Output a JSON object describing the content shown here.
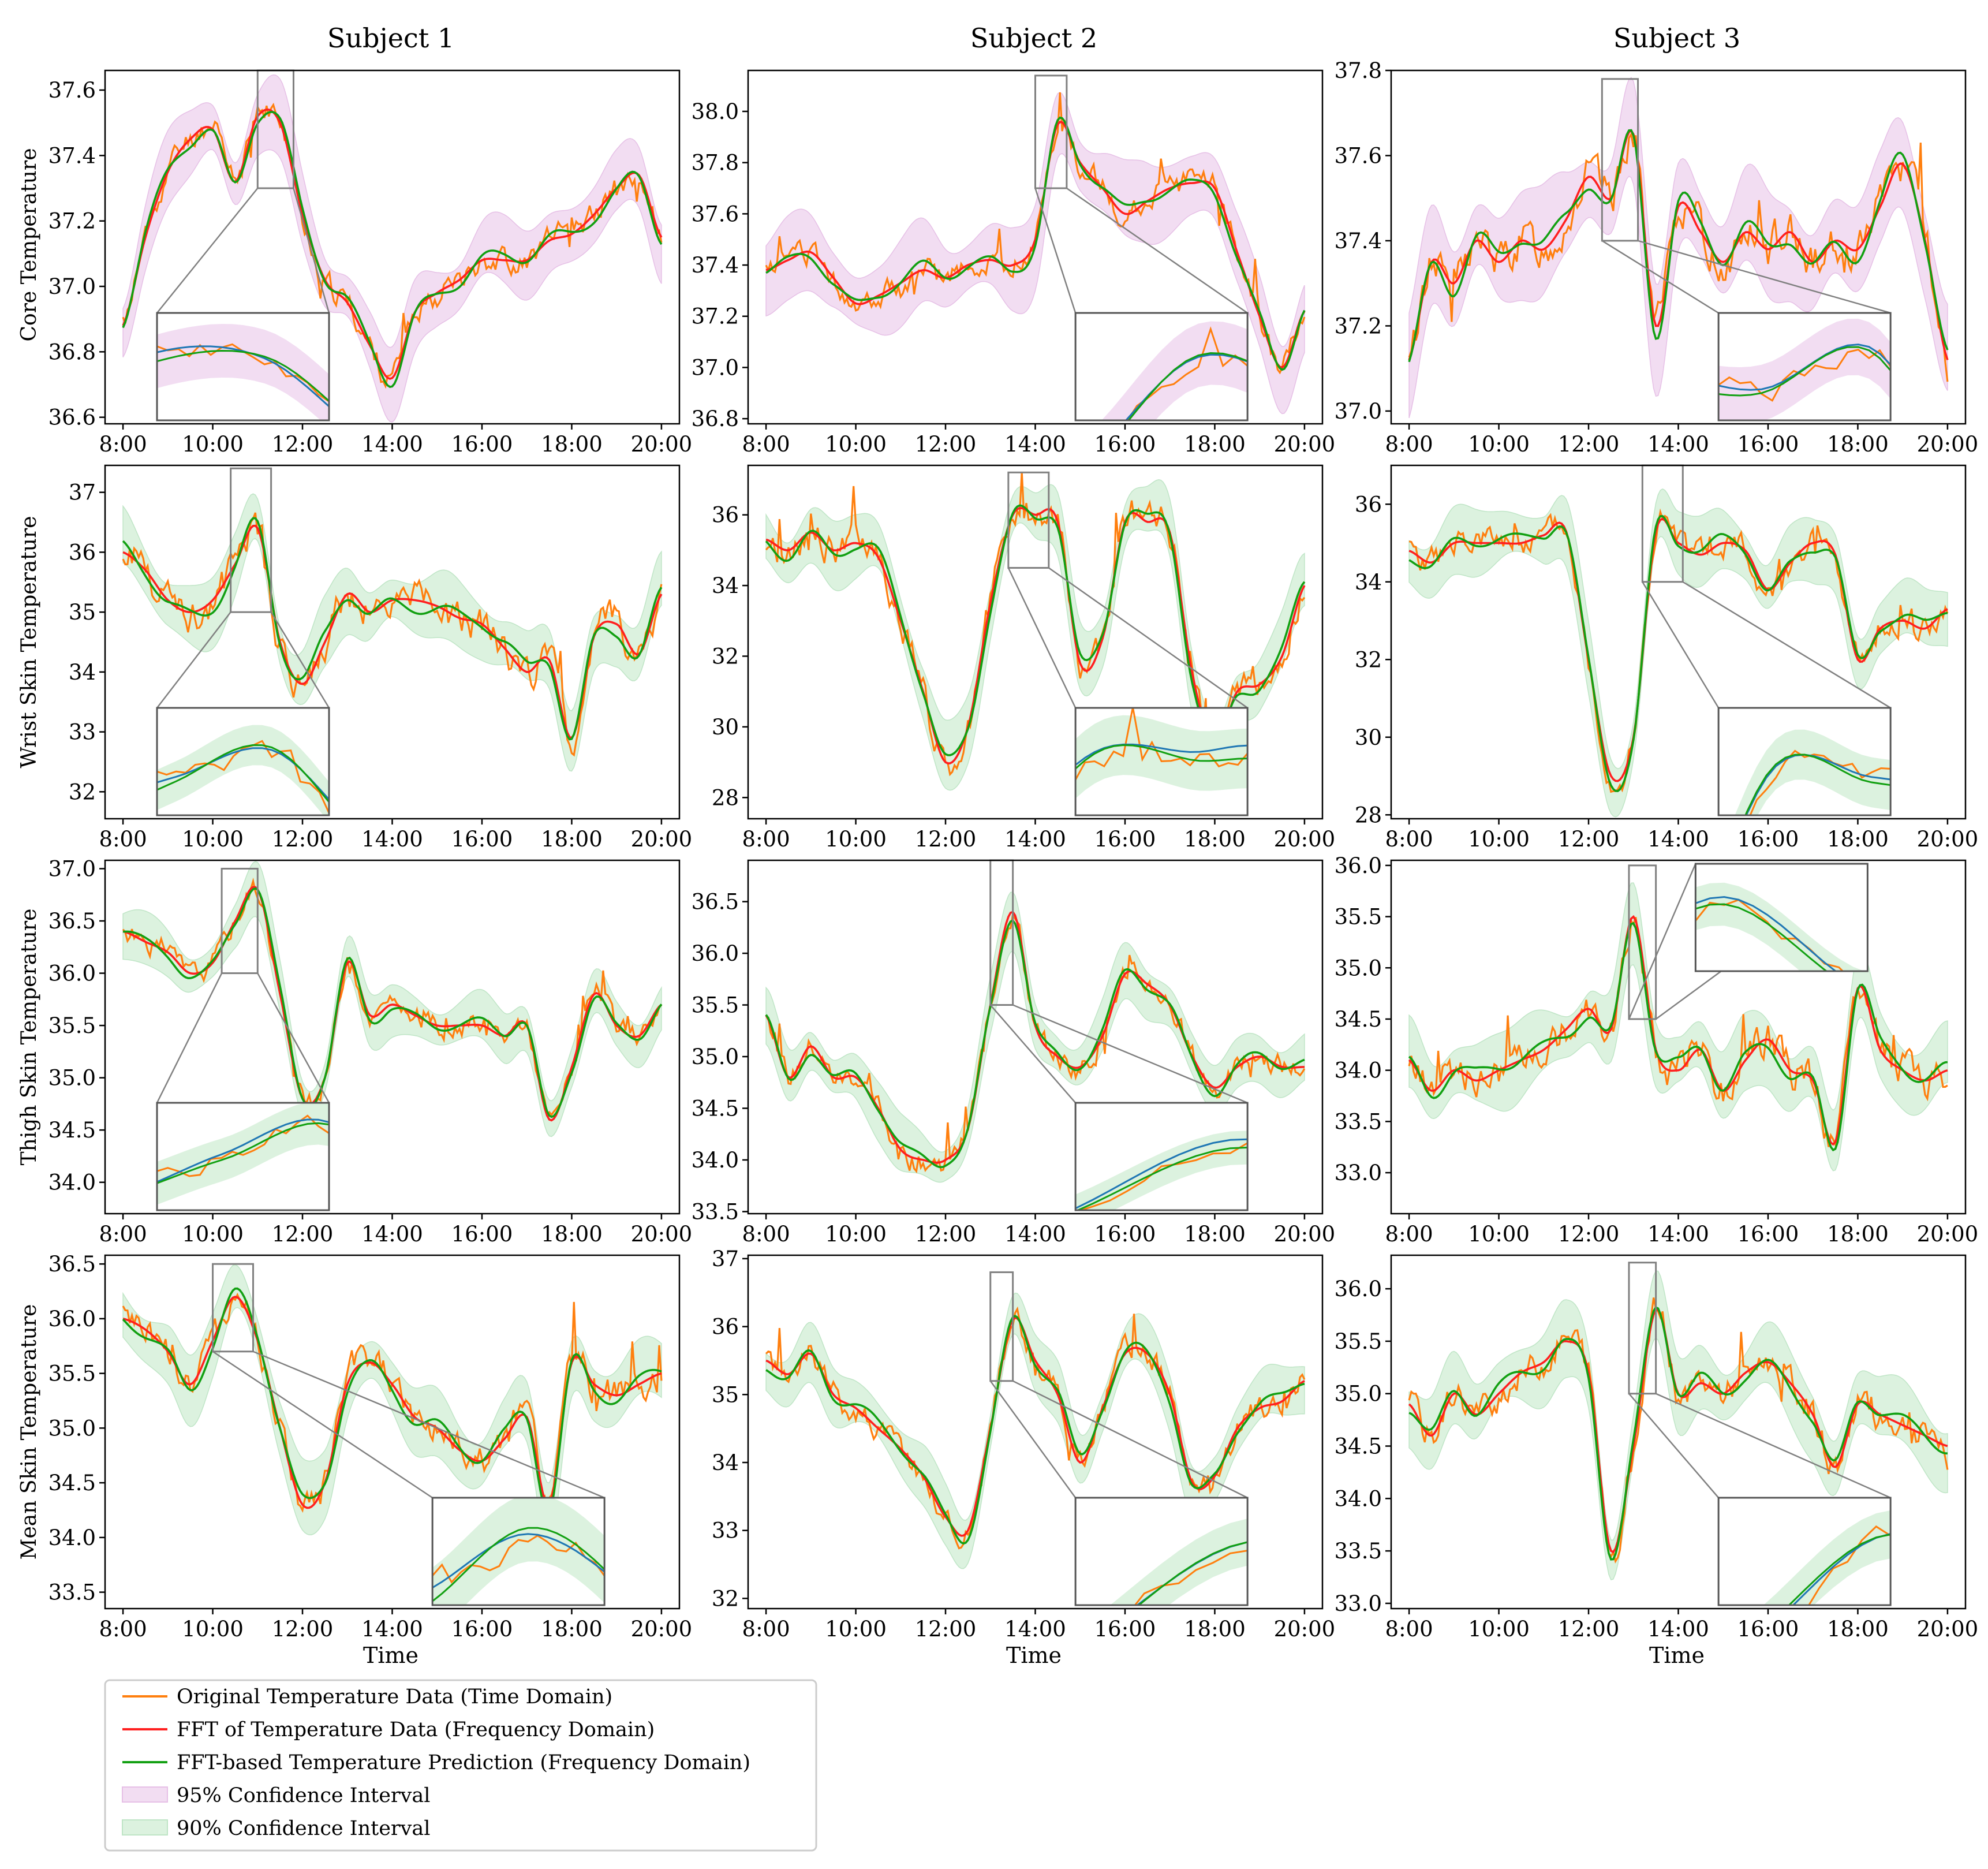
{
  "figure": {
    "subjects": [
      "Subject 1",
      "Subject 2",
      "Subject 3"
    ],
    "row_labels": [
      "Core Temperature",
      "Wrist Skin Temperature",
      "Thigh Skin Temperature",
      "Mean Skin Temperature"
    ],
    "xlabel": "Time",
    "x_ticks": [
      "8:00",
      "10:00",
      "12:00",
      "14:00",
      "16:00",
      "18:00",
      "20:00"
    ]
  },
  "colors": {
    "original": "#ff7f0e",
    "fft": "#ff1f1f",
    "prediction": "#12a012",
    "fit": "#1f77b4",
    "ci95": "#f2ddf2",
    "ci90": "#dcf2df",
    "ci95_edge": "#e6c0e6",
    "ci90_edge": "#bfe5c6",
    "zoom_box": "#808080"
  },
  "legend": {
    "items": [
      {
        "label": "Original Temperature Data (Time Domain)",
        "kind": "line",
        "color_key": "original"
      },
      {
        "label": "FFT of Temperature Data (Frequency Domain)",
        "kind": "line",
        "color_key": "fft"
      },
      {
        "label": "FFT-based Temperature Prediction (Frequency Domain)",
        "kind": "line",
        "color_key": "prediction"
      },
      {
        "label": "95% Confidence Interval",
        "kind": "patch",
        "color_key": "ci95"
      },
      {
        "label": "90% Confidence Interval",
        "kind": "patch",
        "color_key": "ci90"
      }
    ]
  },
  "chart_data": [
    {
      "type": "line",
      "title": "Subject 1",
      "ylabel": "Core Temperature",
      "xlabel": "",
      "ylim": [
        36.58,
        37.66
      ],
      "yticks": [
        36.6,
        36.8,
        37.0,
        37.2,
        37.4,
        37.6
      ],
      "ytick_labels": [
        "36.6",
        "36.8",
        "37.0",
        "37.2",
        "37.4",
        "37.6"
      ],
      "ci": 95,
      "ci_width": 0.09,
      "noise": 0.04,
      "seed": 11,
      "x": [
        8,
        8.5,
        9,
        9.5,
        10,
        10.5,
        11,
        11.5,
        12,
        12.5,
        13,
        13.5,
        14,
        14.5,
        15,
        15.5,
        16,
        16.5,
        17,
        17.5,
        18,
        18.5,
        19,
        19.5,
        20
      ],
      "fft": [
        36.88,
        37.15,
        37.35,
        37.45,
        37.48,
        37.32,
        37.52,
        37.5,
        37.22,
        37.02,
        36.95,
        36.82,
        36.72,
        36.92,
        36.98,
        37.02,
        37.08,
        37.08,
        37.08,
        37.14,
        37.16,
        37.22,
        37.3,
        37.34,
        37.15
      ],
      "zoom": {
        "x": [
          11,
          11.8
        ],
        "y": [
          37.3,
          37.66
        ],
        "inset": "lower-left"
      }
    },
    {
      "type": "line",
      "title": "Subject 2",
      "ylabel": "",
      "xlabel": "",
      "ylim": [
        36.78,
        38.16
      ],
      "yticks": [
        36.8,
        37.0,
        37.2,
        37.4,
        37.6,
        37.8,
        38.0
      ],
      "ytick_labels": [
        "36.8",
        "37.0",
        "37.2",
        "37.4",
        "37.6",
        "37.8",
        "38.0"
      ],
      "ci": 95,
      "ci_width": 0.13,
      "noise": 0.05,
      "seed": 12,
      "x": [
        8,
        8.5,
        9,
        9.5,
        10,
        10.5,
        11,
        11.5,
        12,
        12.5,
        13,
        13.5,
        14,
        14.5,
        15,
        15.5,
        16,
        16.5,
        17,
        17.5,
        18,
        18.5,
        19,
        19.5,
        20
      ],
      "fft": [
        37.38,
        37.42,
        37.45,
        37.35,
        37.25,
        37.28,
        37.33,
        37.38,
        37.35,
        37.4,
        37.42,
        37.4,
        37.5,
        37.95,
        37.8,
        37.7,
        37.6,
        37.65,
        37.7,
        37.72,
        37.7,
        37.45,
        37.2,
        37.0,
        37.22
      ],
      "zoom": {
        "x": [
          14,
          14.7
        ],
        "y": [
          37.7,
          38.14
        ],
        "inset": "lower-right"
      }
    },
    {
      "type": "line",
      "title": "Subject 3",
      "ylabel": "",
      "xlabel": "",
      "ylim": [
        36.97,
        37.8
      ],
      "yticks": [
        37.0,
        37.2,
        37.4,
        37.6,
        37.8
      ],
      "ytick_labels": [
        "37.0",
        "37.2",
        "37.4",
        "37.6",
        "37.8"
      ],
      "ci": 95,
      "ci_width": 0.1,
      "noise": 0.05,
      "seed": 13,
      "x": [
        8,
        8.5,
        9,
        9.5,
        10,
        10.5,
        11,
        11.5,
        12,
        12.5,
        13,
        13.5,
        14,
        14.5,
        15,
        15.5,
        16,
        16.5,
        17,
        17.5,
        18,
        18.5,
        19,
        19.5,
        20
      ],
      "fft": [
        37.12,
        37.35,
        37.3,
        37.4,
        37.35,
        37.4,
        37.38,
        37.45,
        37.55,
        37.5,
        37.65,
        37.2,
        37.48,
        37.42,
        37.35,
        37.42,
        37.38,
        37.42,
        37.35,
        37.4,
        37.38,
        37.48,
        37.58,
        37.4,
        37.12
      ],
      "zoom": {
        "x": [
          12.3,
          13.1
        ],
        "y": [
          37.4,
          37.78
        ],
        "inset": "lower-right"
      }
    },
    {
      "type": "line",
      "title": "",
      "ylabel": "Wrist Skin Temperature",
      "xlabel": "",
      "ylim": [
        31.55,
        37.45
      ],
      "yticks": [
        32,
        33,
        34,
        35,
        36,
        37
      ],
      "ytick_labels": [
        "32",
        "33",
        "34",
        "35",
        "36",
        "37"
      ],
      "ci": 90,
      "ci_width": 0.45,
      "noise": 0.3,
      "seed": 21,
      "x": [
        8,
        8.5,
        9,
        9.5,
        10,
        10.5,
        11,
        11.5,
        12,
        12.5,
        13,
        13.5,
        14,
        14.5,
        15,
        15.5,
        16,
        16.5,
        17,
        17.5,
        18,
        18.5,
        19,
        19.5,
        20
      ],
      "fft": [
        36.0,
        35.7,
        35.2,
        35.0,
        35.2,
        35.8,
        36.4,
        34.5,
        33.8,
        34.5,
        35.3,
        35.0,
        35.2,
        35.2,
        35.1,
        34.9,
        34.8,
        34.4,
        34.0,
        34.2,
        32.9,
        34.6,
        34.8,
        34.3,
        35.3
      ],
      "zoom": {
        "x": [
          10.4,
          11.3
        ],
        "y": [
          35.0,
          37.4
        ],
        "inset": "lower-left"
      }
    },
    {
      "type": "line",
      "title": "",
      "ylabel": "",
      "xlabel": "",
      "ylim": [
        27.4,
        37.4
      ],
      "yticks": [
        28,
        30,
        32,
        34,
        36
      ],
      "ytick_labels": [
        "28",
        "30",
        "32",
        "34",
        "36"
      ],
      "ci": 90,
      "ci_width": 0.75,
      "noise": 0.45,
      "seed": 22,
      "x": [
        8,
        8.5,
        9,
        9.5,
        10,
        10.5,
        11,
        11.5,
        12,
        12.5,
        13,
        13.5,
        14,
        14.5,
        15,
        15.5,
        16,
        16.5,
        17,
        17.5,
        18,
        18.5,
        19,
        19.5,
        20
      ],
      "fft": [
        35.3,
        35.0,
        35.5,
        35.0,
        35.2,
        34.8,
        33.0,
        31.0,
        29.0,
        30.0,
        33.5,
        36.0,
        36.0,
        35.8,
        31.8,
        32.5,
        35.8,
        35.8,
        35.5,
        31.5,
        29.5,
        31.0,
        31.2,
        32.0,
        34.0
      ],
      "zoom": {
        "x": [
          13.4,
          14.3
        ],
        "y": [
          34.5,
          37.2
        ],
        "inset": "lower-right"
      }
    },
    {
      "type": "line",
      "title": "",
      "ylabel": "",
      "xlabel": "",
      "ylim": [
        27.9,
        37.0
      ],
      "yticks": [
        28,
        30,
        32,
        34,
        36
      ],
      "ytick_labels": [
        "28",
        "30",
        "32",
        "34",
        "36"
      ],
      "ci": 90,
      "ci_width": 0.7,
      "noise": 0.35,
      "seed": 23,
      "x": [
        8,
        8.5,
        9,
        9.5,
        10,
        10.5,
        11,
        11.5,
        12,
        12.5,
        13,
        13.5,
        14,
        14.5,
        15,
        15.5,
        16,
        16.5,
        17,
        17.5,
        18,
        18.5,
        19,
        19.5,
        20
      ],
      "fft": [
        34.8,
        34.5,
        35.0,
        35.0,
        35.0,
        35.0,
        35.2,
        35.3,
        32.0,
        29.0,
        30.0,
        35.3,
        35.0,
        34.7,
        35.0,
        34.8,
        33.8,
        34.5,
        35.0,
        34.7,
        32.0,
        32.8,
        33.0,
        32.8,
        33.3
      ],
      "zoom": {
        "x": [
          13.2,
          14.1
        ],
        "y": [
          34.0,
          37.0
        ],
        "inset": "lower-right"
      }
    },
    {
      "type": "line",
      "title": "",
      "ylabel": "Thigh Skin Temperature",
      "xlabel": "",
      "ylim": [
        33.7,
        37.08
      ],
      "yticks": [
        34.0,
        34.5,
        35.0,
        35.5,
        36.0,
        36.5,
        37.0
      ],
      "ytick_labels": [
        "34.0",
        "34.5",
        "35.0",
        "35.5",
        "36.0",
        "36.5",
        "37.0"
      ],
      "ci": 90,
      "ci_width": 0.2,
      "noise": 0.1,
      "seed": 31,
      "x": [
        8,
        8.5,
        9,
        9.5,
        10,
        10.5,
        11,
        11.5,
        12,
        12.5,
        13,
        13.5,
        14,
        14.5,
        15,
        15.5,
        16,
        16.5,
        17,
        17.5,
        18,
        18.5,
        19,
        19.5,
        20
      ],
      "fft": [
        36.4,
        36.3,
        36.2,
        36.0,
        36.1,
        36.5,
        36.8,
        35.8,
        34.8,
        35.0,
        36.1,
        35.6,
        35.7,
        35.6,
        35.5,
        35.5,
        35.5,
        35.4,
        35.5,
        34.6,
        35.1,
        35.8,
        35.5,
        35.4,
        35.7
      ],
      "zoom": {
        "x": [
          10.2,
          11.0
        ],
        "y": [
          36.0,
          37.0
        ],
        "inset": "lower-left"
      }
    },
    {
      "type": "line",
      "title": "",
      "ylabel": "",
      "xlabel": "",
      "ylim": [
        33.48,
        36.9
      ],
      "yticks": [
        33.5,
        34.0,
        34.5,
        35.0,
        35.5,
        36.0,
        36.5
      ],
      "ytick_labels": [
        "33.5",
        "34.0",
        "34.5",
        "35.0",
        "35.5",
        "36.0",
        "36.5"
      ],
      "ci": 90,
      "ci_width": 0.22,
      "noise": 0.12,
      "seed": 32,
      "x": [
        8,
        8.5,
        9,
        9.5,
        10,
        10.5,
        11,
        11.5,
        12,
        12.5,
        13,
        13.5,
        14,
        14.5,
        15,
        15.5,
        16,
        16.5,
        17,
        17.5,
        18,
        18.5,
        19,
        19.5,
        20
      ],
      "fft": [
        35.4,
        34.8,
        35.1,
        34.8,
        34.8,
        34.5,
        34.1,
        34.0,
        34.0,
        34.3,
        35.5,
        36.4,
        35.3,
        35.0,
        34.9,
        35.2,
        35.8,
        35.7,
        35.5,
        35.0,
        34.7,
        34.9,
        35.0,
        34.9,
        34.9
      ],
      "zoom": {
        "x": [
          13.0,
          13.5
        ],
        "y": [
          35.5,
          36.9
        ],
        "inset": "lower-right"
      }
    },
    {
      "type": "line",
      "title": "",
      "ylabel": "",
      "xlabel": "",
      "ylim": [
        32.6,
        36.05
      ],
      "yticks": [
        33.0,
        33.5,
        34.0,
        34.5,
        35.0,
        35.5,
        36.0
      ],
      "ytick_labels": [
        "33.0",
        "33.5",
        "34.0",
        "34.5",
        "35.0",
        "35.5",
        "36.0"
      ],
      "ci": 90,
      "ci_width": 0.3,
      "noise": 0.18,
      "seed": 33,
      "x": [
        8,
        8.5,
        9,
        9.5,
        10,
        10.5,
        11,
        11.5,
        12,
        12.5,
        13,
        13.5,
        14,
        14.5,
        15,
        15.5,
        16,
        16.5,
        17,
        17.5,
        18,
        18.5,
        19,
        19.5,
        20
      ],
      "fft": [
        34.1,
        33.8,
        34.0,
        33.9,
        34.0,
        34.1,
        34.2,
        34.4,
        34.6,
        34.4,
        35.5,
        34.2,
        34.0,
        34.2,
        33.8,
        34.1,
        34.3,
        34.0,
        33.9,
        33.3,
        34.8,
        34.2,
        34.0,
        33.9,
        34.0
      ],
      "zoom": {
        "x": [
          12.9,
          13.5
        ],
        "y": [
          34.5,
          36.0
        ],
        "inset": "upper-right"
      }
    },
    {
      "type": "line",
      "title": "",
      "ylabel": "Mean Skin Temperature",
      "xlabel": "Time",
      "ylim": [
        33.35,
        36.58
      ],
      "yticks": [
        33.5,
        34.0,
        34.5,
        35.0,
        35.5,
        36.0,
        36.5
      ],
      "ytick_labels": [
        "33.5",
        "34.0",
        "34.5",
        "35.0",
        "35.5",
        "36.0",
        "36.5"
      ],
      "ci": 90,
      "ci_width": 0.25,
      "noise": 0.15,
      "seed": 41,
      "x": [
        8,
        8.5,
        9,
        9.5,
        10,
        10.5,
        11,
        11.5,
        12,
        12.5,
        13,
        13.5,
        14,
        14.5,
        15,
        15.5,
        16,
        16.5,
        17,
        17.5,
        18,
        18.5,
        19,
        19.5,
        20
      ],
      "fft": [
        36.0,
        35.9,
        35.7,
        35.4,
        35.8,
        36.2,
        35.8,
        35.0,
        34.3,
        34.5,
        35.4,
        35.6,
        35.4,
        35.1,
        35.0,
        34.8,
        34.7,
        34.9,
        35.1,
        34.3,
        35.6,
        35.4,
        35.3,
        35.4,
        35.5
      ],
      "zoom": {
        "x": [
          10.0,
          10.9
        ],
        "y": [
          35.7,
          36.5
        ],
        "inset": "lower-right"
      }
    },
    {
      "type": "line",
      "title": "",
      "ylabel": "",
      "xlabel": "Time",
      "ylim": [
        31.85,
        37.05
      ],
      "yticks": [
        32,
        33,
        34,
        35,
        36,
        37
      ],
      "ytick_labels": [
        "32",
        "33",
        "34",
        "35",
        "36",
        "37"
      ],
      "ci": 90,
      "ci_width": 0.35,
      "noise": 0.2,
      "seed": 42,
      "x": [
        8,
        8.5,
        9,
        9.5,
        10,
        10.5,
        11,
        11.5,
        12,
        12.5,
        13,
        13.5,
        14,
        14.5,
        15,
        15.5,
        16,
        16.5,
        17,
        17.5,
        18,
        18.5,
        19,
        19.5,
        20
      ],
      "fft": [
        35.5,
        35.3,
        35.6,
        35.0,
        34.8,
        34.5,
        34.2,
        33.8,
        33.2,
        33.0,
        34.5,
        36.1,
        35.5,
        35.0,
        34.0,
        34.8,
        35.6,
        35.6,
        35.0,
        33.7,
        33.8,
        34.5,
        34.8,
        34.9,
        35.2
      ],
      "zoom": {
        "x": [
          13.0,
          13.5
        ],
        "y": [
          35.2,
          36.8
        ],
        "inset": "lower-right"
      }
    },
    {
      "type": "line",
      "title": "",
      "ylabel": "",
      "xlabel": "Time",
      "ylim": [
        32.95,
        36.32
      ],
      "yticks": [
        33.0,
        33.5,
        34.0,
        34.5,
        35.0,
        35.5,
        36.0
      ],
      "ytick_labels": [
        "33.0",
        "33.5",
        "34.0",
        "34.5",
        "35.0",
        "35.5",
        "36.0"
      ],
      "ci": 90,
      "ci_width": 0.28,
      "noise": 0.15,
      "seed": 43,
      "x": [
        8,
        8.5,
        9,
        9.5,
        10,
        10.5,
        11,
        11.5,
        12,
        12.5,
        13,
        13.5,
        14,
        14.5,
        15,
        15.5,
        16,
        16.5,
        17,
        17.5,
        18,
        18.5,
        19,
        19.5,
        20
      ],
      "fft": [
        34.9,
        34.6,
        35.0,
        34.8,
        35.0,
        35.2,
        35.3,
        35.5,
        35.2,
        33.5,
        34.5,
        35.8,
        35.0,
        35.1,
        35.0,
        35.2,
        35.3,
        35.1,
        34.8,
        34.3,
        34.9,
        34.8,
        34.7,
        34.6,
        34.5
      ],
      "zoom": {
        "x": [
          12.9,
          13.5
        ],
        "y": [
          35.0,
          36.25
        ],
        "inset": "lower-right"
      }
    }
  ]
}
